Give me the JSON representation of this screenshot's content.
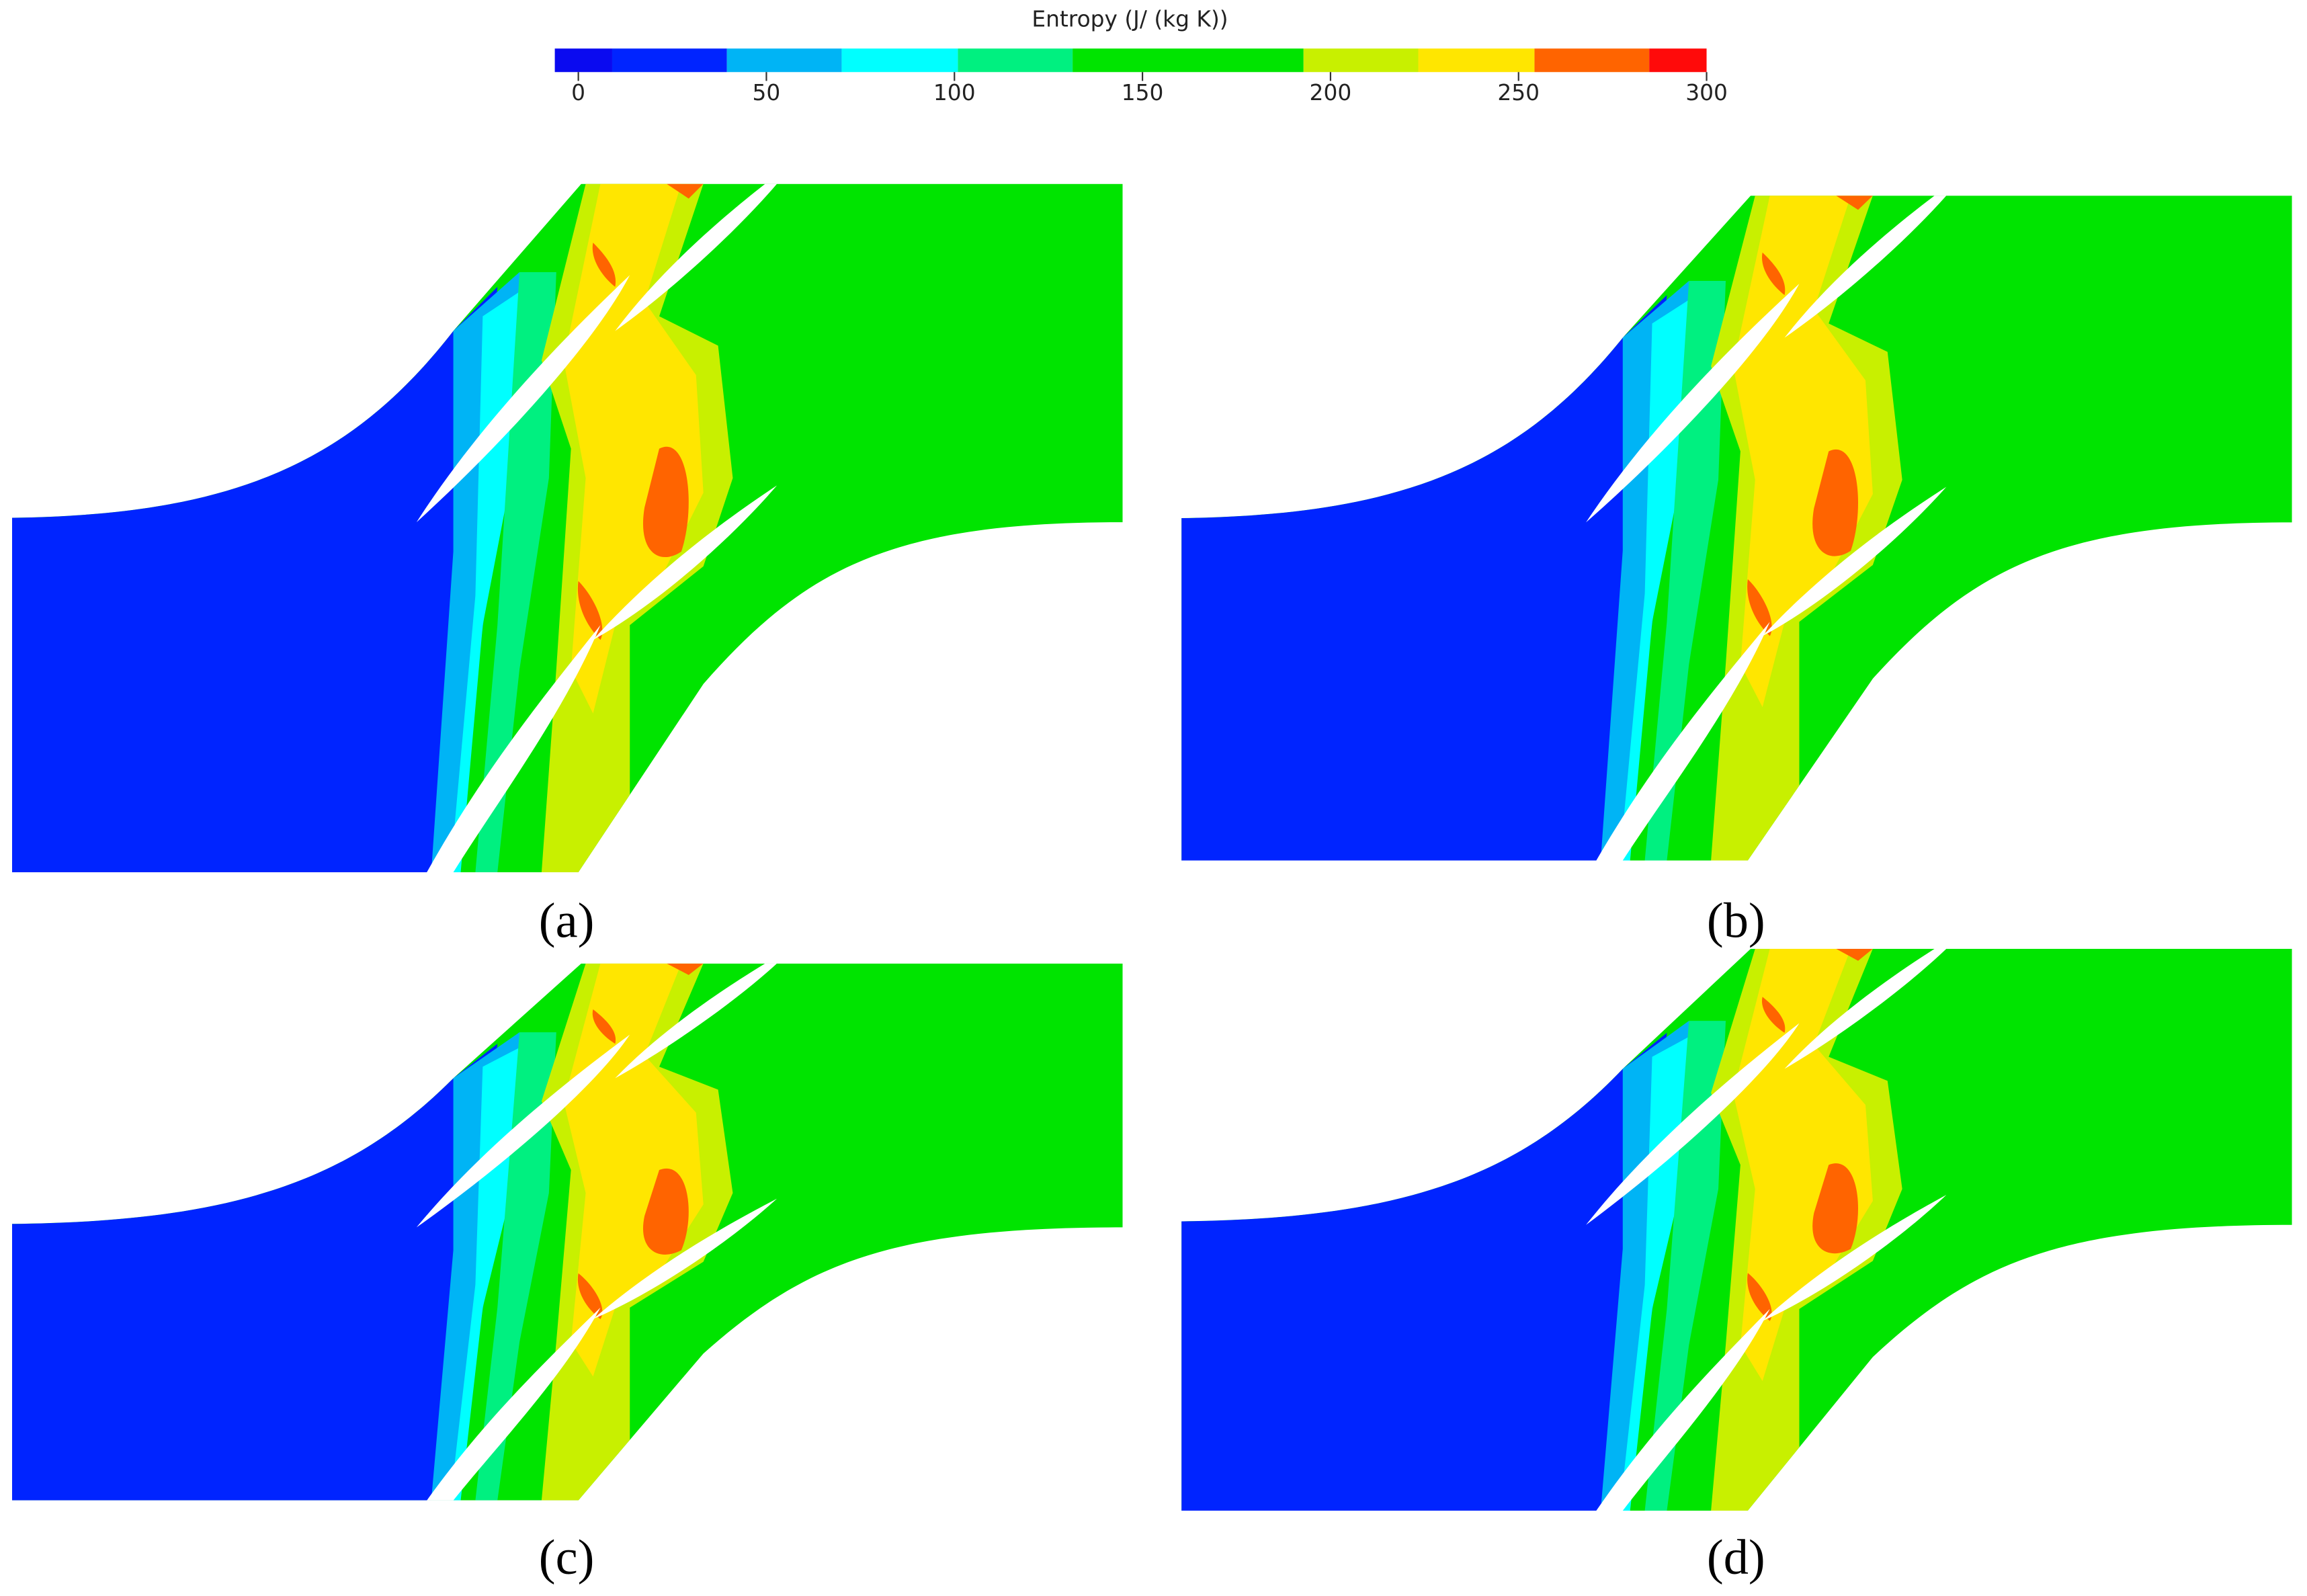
{
  "colorbar": {
    "title": "Entropy (J/ (kg K))",
    "ticks": [
      0,
      50,
      100,
      150,
      200,
      250,
      300
    ],
    "colors": [
      "#0a0af0",
      "#0024ff",
      "#00b4f5",
      "#00ffff",
      "#00f080",
      "#00e400",
      "#c8f000",
      "#ffe600",
      "#ff6400",
      "#ff0a0a"
    ]
  },
  "panels": [
    {
      "label": "(a)"
    },
    {
      "label": "(b)"
    },
    {
      "label": "(c)"
    },
    {
      "label": "(d)"
    }
  ]
}
